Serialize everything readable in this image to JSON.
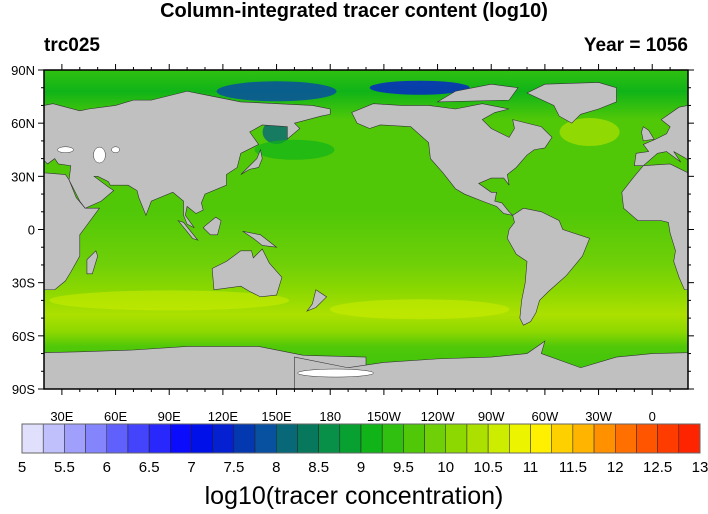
{
  "title": "Column-integrated tracer content (log10)",
  "left_string": "trc025",
  "right_string": "Year = 1056",
  "lat_labels": [
    "90N",
    "60N",
    "30N",
    "0",
    "30S",
    "60S",
    "90S"
  ],
  "lat_values": [
    90,
    60,
    30,
    0,
    -30,
    -60,
    -90
  ],
  "lon_labels": [
    "30E",
    "60E",
    "90E",
    "120E",
    "150E",
    "180",
    "150W",
    "120W",
    "90W",
    "60W",
    "30W",
    "0"
  ],
  "lon_values": [
    30,
    60,
    90,
    120,
    150,
    180,
    210,
    240,
    270,
    300,
    330,
    360
  ],
  "map_extent": {
    "lon": [
      20,
      380
    ],
    "lat": [
      -90,
      90
    ]
  },
  "land_color": "#c0c0c0",
  "ice_color": "#ffffff",
  "colorbar": {
    "label": "log10(tracer concentration)",
    "tick_labels": [
      "5",
      "5.5",
      "6",
      "6.5",
      "7",
      "7.5",
      "8",
      "8.5",
      "9",
      "9.5",
      "10",
      "10.5",
      "11",
      "11.5",
      "12",
      "12.5",
      "13"
    ],
    "range": [
      5,
      13
    ],
    "step": 0.25,
    "colors": [
      "#e0e0fc",
      "#c0c0fc",
      "#a0a0fc",
      "#8484fc",
      "#6060fc",
      "#4444fc",
      "#2828fc",
      "#0c0cfc",
      "#0010e8",
      "#0420d0",
      "#0438b0",
      "#0850a0",
      "#086878",
      "#08785c",
      "#089048",
      "#08a030",
      "#10b418",
      "#30c010",
      "#50c808",
      "#70d008",
      "#8cd800",
      "#ace000",
      "#ccec00",
      "#ecf400",
      "#fff000",
      "#ffd000",
      "#ffb400",
      "#ff9000",
      "#ff7000",
      "#ff5400",
      "#ff3c00",
      "#ff2400"
    ]
  }
}
